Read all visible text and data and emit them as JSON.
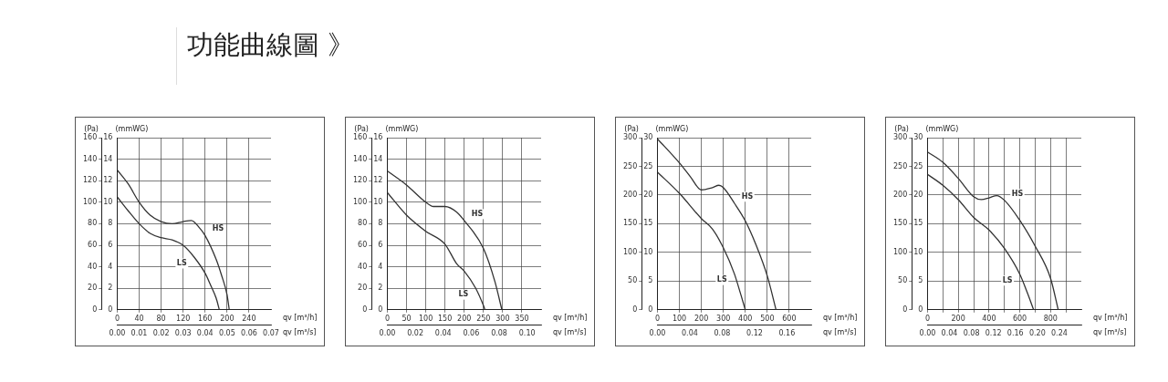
{
  "chart_data": [
    {
      "type": "line",
      "title": "功能曲線圖 》",
      "xlabel": "qv [m³/h]",
      "x2label": "qv [m³/s]",
      "ylabel": "(Pa)",
      "y2label": "(mmWG)",
      "xlim": [
        0,
        280
      ],
      "xticks": [
        0,
        40,
        80,
        120,
        160,
        200,
        240
      ],
      "x2lim": [
        0,
        0.07
      ],
      "x2ticks": [
        {
          "value": 0,
          "label": "0.00"
        },
        {
          "value": 0.01,
          "label": "0.01"
        },
        {
          "value": 0.02,
          "label": "0.02"
        },
        {
          "value": 0.03,
          "label": "0.03"
        },
        {
          "value": 0.04,
          "label": "0.04"
        },
        {
          "value": 0.05,
          "label": "0.05"
        },
        {
          "value": 0.06,
          "label": "0.06"
        },
        {
          "value": 0.07,
          "label": "0.07"
        }
      ],
      "ylim": [
        0,
        160
      ],
      "yticks": [
        0,
        20,
        40,
        60,
        80,
        100,
        120,
        140,
        160
      ],
      "y2lim": [
        0,
        16
      ],
      "y2ticks": [
        0,
        2,
        4,
        6,
        8,
        10,
        12,
        14,
        16
      ],
      "grid": true,
      "legend": false,
      "marker": "none",
      "line_style": "solid",
      "series": [
        {
          "name": "HS",
          "color": "#333333",
          "x": [
            0,
            20,
            40,
            60,
            80,
            100,
            120,
            135,
            150,
            160,
            180,
            190,
            200,
            204
          ],
          "values": [
            130,
            117,
            100,
            88,
            82,
            80,
            82,
            83,
            76,
            69,
            47,
            32,
            14,
            0
          ]
        },
        {
          "name": "LS",
          "color": "#333333",
          "x": [
            0,
            20,
            40,
            60,
            80,
            100,
            120,
            140,
            160,
            170,
            180,
            186
          ],
          "values": [
            105,
            92,
            80,
            71,
            67,
            65,
            60,
            49,
            34,
            23,
            11,
            0
          ]
        }
      ]
    },
    {
      "type": "line",
      "xlabel": "qv [m³/h]",
      "x2label": "qv [m³/s]",
      "ylabel": "(Pa)",
      "y2label": "(mmWG)",
      "xlim": [
        0,
        400
      ],
      "xticks": [
        0,
        50,
        100,
        150,
        200,
        250,
        300,
        350
      ],
      "x2lim": [
        0,
        0.11
      ],
      "x2ticks": [
        {
          "value": 0,
          "label": "0.00"
        },
        {
          "value": 0.02,
          "label": "0.02"
        },
        {
          "value": 0.04,
          "label": "0.04"
        },
        {
          "value": 0.06,
          "label": "0.06"
        },
        {
          "value": 0.08,
          "label": "0.08"
        },
        {
          "value": 0.1,
          "label": "0.10"
        }
      ],
      "ylim": [
        0,
        160
      ],
      "yticks": [
        0,
        20,
        40,
        60,
        80,
        100,
        120,
        140,
        160
      ],
      "y2lim": [
        0,
        16
      ],
      "y2ticks": [
        0,
        2,
        4,
        6,
        8,
        10,
        12,
        14,
        16
      ],
      "grid": true,
      "legend": false,
      "marker": "none",
      "line_style": "solid",
      "series": [
        {
          "name": "HS",
          "color": "#333333",
          "x": [
            0,
            50,
            100,
            120,
            150,
            180,
            200,
            250,
            280,
            298
          ],
          "values": [
            129,
            116,
            100,
            96,
            96,
            91,
            83,
            57,
            26,
            0
          ]
        },
        {
          "name": "LS",
          "color": "#333333",
          "x": [
            0,
            50,
            100,
            150,
            180,
            200,
            230,
            250,
            254
          ],
          "values": [
            109,
            88,
            73,
            61,
            43,
            36,
            20,
            4,
            0
          ]
        }
      ]
    },
    {
      "type": "line",
      "xlabel": "qv [m³/h]",
      "x2label": "qv [m³/s]",
      "ylabel": "(Pa)",
      "y2label": "(mmWG)",
      "xlim": [
        0,
        700
      ],
      "xticks": [
        0,
        100,
        200,
        300,
        400,
        500,
        600
      ],
      "x2lim": [
        0,
        0.19
      ],
      "x2ticks": [
        {
          "value": 0,
          "label": "0.00"
        },
        {
          "value": 0.04,
          "label": "0.04"
        },
        {
          "value": 0.08,
          "label": "0.08"
        },
        {
          "value": 0.12,
          "label": "0.12"
        },
        {
          "value": 0.16,
          "label": "0.16"
        }
      ],
      "ylim": [
        0,
        300
      ],
      "yticks": [
        0,
        50,
        100,
        150,
        200,
        250,
        300
      ],
      "y2lim": [
        0,
        30
      ],
      "y2ticks": [
        0,
        5,
        10,
        15,
        20,
        25,
        30
      ],
      "grid": true,
      "legend": false,
      "marker": "none",
      "line_style": "solid",
      "series": [
        {
          "name": "HS",
          "color": "#333333",
          "x": [
            0,
            100,
            150,
            200,
            250,
            280,
            300,
            350,
            400,
            450,
            500,
            540
          ],
          "values": [
            298,
            256,
            232,
            209,
            213,
            217,
            213,
            186,
            155,
            112,
            59,
            0
          ]
        },
        {
          "name": "LS",
          "color": "#333333",
          "x": [
            0,
            100,
            200,
            250,
            300,
            350,
            380,
            400
          ],
          "values": [
            240,
            203,
            159,
            141,
            108,
            63,
            26,
            0
          ]
        }
      ]
    },
    {
      "type": "line",
      "xlabel": "qv [m³/h]",
      "x2label": "qv [m³/s]",
      "ylabel": "(Pa)",
      "y2label": "(mmWG)",
      "xlim": [
        0,
        1000
      ],
      "xticks": [
        0,
        {
          "value": 100,
          "label": null
        },
        200,
        {
          "value": 300,
          "label": null
        },
        400,
        {
          "value": 500,
          "label": null
        },
        600,
        {
          "value": 700,
          "label": null
        },
        800,
        {
          "value": 900,
          "label": null
        }
      ],
      "x2lim": [
        0,
        0.28
      ],
      "x2ticks": [
        {
          "value": 0,
          "label": "0.00"
        },
        {
          "value": 0.04,
          "label": "0.04"
        },
        {
          "value": 0.08,
          "label": "0.08"
        },
        {
          "value": 0.12,
          "label": "0.12"
        },
        {
          "value": 0.16,
          "label": "0.16"
        },
        {
          "value": 0.2,
          "label": "0.20"
        },
        {
          "value": 0.24,
          "label": "0.24"
        }
      ],
      "ylim": [
        0,
        300
      ],
      "yticks": [
        0,
        50,
        100,
        150,
        200,
        250,
        300
      ],
      "y2lim": [
        0,
        30
      ],
      "y2ticks": [
        0,
        5,
        10,
        15,
        20,
        25,
        30
      ],
      "grid": true,
      "legend": false,
      "marker": "none",
      "line_style": "solid",
      "series": [
        {
          "name": "HS",
          "color": "#333333",
          "x": [
            0,
            100,
            200,
            300,
            350,
            400,
            450,
            500,
            600,
            700,
            800,
            850
          ],
          "values": [
            275,
            257,
            229,
            197,
            192,
            195,
            199,
            191,
            156,
            111,
            55,
            0
          ]
        },
        {
          "name": "LS",
          "color": "#333333",
          "x": [
            0,
            100,
            200,
            300,
            400,
            500,
            600,
            650,
            690
          ],
          "values": [
            236,
            217,
            192,
            161,
            139,
            107,
            62,
            29,
            0
          ]
        }
      ]
    }
  ]
}
